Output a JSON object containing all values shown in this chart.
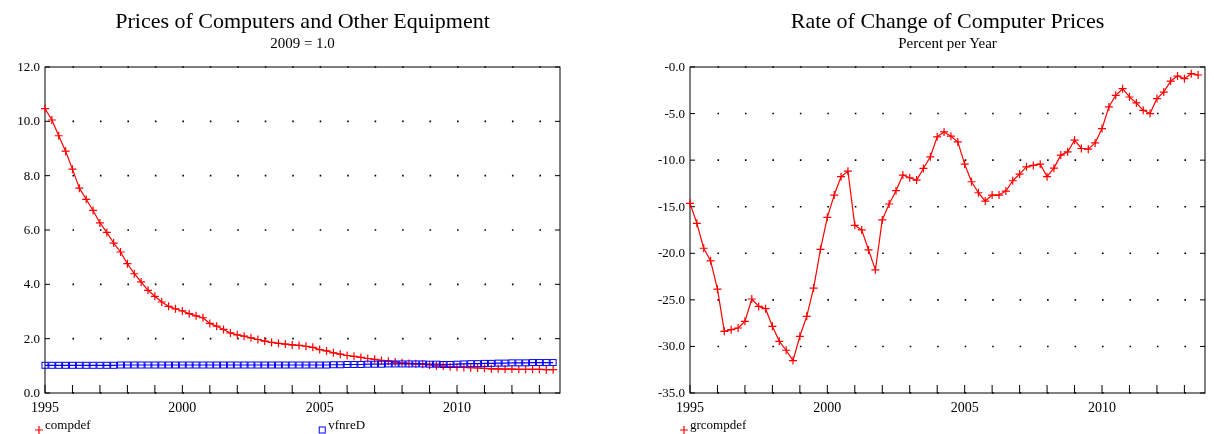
{
  "chart_data": [
    {
      "type": "line",
      "title": "Prices of Computers and Other Equipment",
      "subtitle": "2009 = 1.0",
      "x": [
        1995,
        1995.25,
        1995.5,
        1995.75,
        1996,
        1996.25,
        1996.5,
        1996.75,
        1997,
        1997.25,
        1997.5,
        1997.75,
        1998,
        1998.25,
        1998.5,
        1998.75,
        1999,
        1999.25,
        1999.5,
        1999.75,
        2000,
        2000.25,
        2000.5,
        2000.75,
        2001,
        2001.25,
        2001.5,
        2001.75,
        2002,
        2002.25,
        2002.5,
        2002.75,
        2003,
        2003.25,
        2003.5,
        2003.75,
        2004,
        2004.25,
        2004.5,
        2004.75,
        2005,
        2005.25,
        2005.5,
        2005.75,
        2006,
        2006.25,
        2006.5,
        2006.75,
        2007,
        2007.25,
        2007.5,
        2007.75,
        2008,
        2008.25,
        2008.5,
        2008.75,
        2009,
        2009.25,
        2009.5,
        2009.75,
        2010,
        2010.25,
        2010.5,
        2010.75,
        2011,
        2011.25,
        2011.5,
        2011.75,
        2012,
        2012.25,
        2012.5,
        2012.75,
        2013,
        2013.25,
        2013.5
      ],
      "series": [
        {
          "name": "compdef",
          "color": "#ff0000",
          "marker": "cross",
          "values": [
            10.47,
            10.05,
            9.47,
            8.9,
            8.24,
            7.54,
            7.13,
            6.72,
            6.26,
            5.91,
            5.52,
            5.19,
            4.76,
            4.39,
            4.09,
            3.78,
            3.56,
            3.35,
            3.19,
            3.1,
            3.02,
            2.92,
            2.84,
            2.77,
            2.56,
            2.46,
            2.34,
            2.21,
            2.14,
            2.09,
            2.03,
            1.97,
            1.91,
            1.86,
            1.83,
            1.8,
            1.77,
            1.75,
            1.72,
            1.68,
            1.6,
            1.55,
            1.48,
            1.43,
            1.38,
            1.35,
            1.31,
            1.27,
            1.24,
            1.2,
            1.17,
            1.14,
            1.11,
            1.09,
            1.08,
            1.06,
            1.03,
            1.0,
            0.99,
            0.97,
            0.95,
            0.94,
            0.93,
            0.92,
            0.91,
            0.89,
            0.89,
            0.88,
            0.88,
            0.87,
            0.87,
            0.87,
            0.87,
            0.86,
            0.86
          ]
        },
        {
          "name": "vfnreD",
          "color": "#0000ff",
          "marker": "square",
          "values": [
            1.02,
            1.02,
            1.02,
            1.02,
            1.02,
            1.02,
            1.02,
            1.02,
            1.02,
            1.02,
            1.02,
            1.03,
            1.03,
            1.03,
            1.03,
            1.03,
            1.03,
            1.03,
            1.03,
            1.03,
            1.03,
            1.03,
            1.03,
            1.03,
            1.03,
            1.03,
            1.03,
            1.03,
            1.03,
            1.03,
            1.03,
            1.03,
            1.03,
            1.03,
            1.03,
            1.03,
            1.03,
            1.03,
            1.03,
            1.03,
            1.03,
            1.03,
            1.04,
            1.04,
            1.05,
            1.05,
            1.05,
            1.06,
            1.06,
            1.06,
            1.07,
            1.07,
            1.07,
            1.07,
            1.07,
            1.07,
            1.06,
            1.06,
            1.05,
            1.05,
            1.06,
            1.07,
            1.08,
            1.08,
            1.09,
            1.09,
            1.1,
            1.1,
            1.11,
            1.11,
            1.11,
            1.12,
            1.12,
            1.12,
            1.12
          ]
        }
      ],
      "xlim": [
        1995,
        2013.75
      ],
      "xticks": [
        {
          "value": 1995,
          "label": "1995"
        },
        {
          "value": 1996,
          "label": null
        },
        {
          "value": 1997,
          "label": null
        },
        {
          "value": 1998,
          "label": null
        },
        {
          "value": 1999,
          "label": null
        },
        {
          "value": 2000,
          "label": "2000"
        },
        {
          "value": 2001,
          "label": null
        },
        {
          "value": 2002,
          "label": null
        },
        {
          "value": 2003,
          "label": null
        },
        {
          "value": 2004,
          "label": null
        },
        {
          "value": 2005,
          "label": "2005"
        },
        {
          "value": 2006,
          "label": null
        },
        {
          "value": 2007,
          "label": null
        },
        {
          "value": 2008,
          "label": null
        },
        {
          "value": 2009,
          "label": null
        },
        {
          "value": 2010,
          "label": "2010"
        },
        {
          "value": 2011,
          "label": null
        },
        {
          "value": 2012,
          "label": null
        },
        {
          "value": 2013,
          "label": null
        }
      ],
      "ylim": [
        0,
        12
      ],
      "yticks": [
        {
          "value": 0,
          "label": "0.0"
        },
        {
          "value": 2,
          "label": "2.0"
        },
        {
          "value": 4,
          "label": "4.0"
        },
        {
          "value": 6,
          "label": "6.0"
        },
        {
          "value": 8,
          "label": "8.0"
        },
        {
          "value": 10,
          "label": "10.0"
        },
        {
          "value": 12,
          "label": "12.0"
        }
      ],
      "grid": true,
      "legend": "bottom"
    },
    {
      "type": "line",
      "title": "Rate of Change of Computer Prices",
      "subtitle": "Percent per Year",
      "x": [
        1995,
        1995.25,
        1995.5,
        1995.75,
        1996,
        1996.25,
        1996.5,
        1996.75,
        1997,
        1997.25,
        1997.5,
        1997.75,
        1998,
        1998.25,
        1998.5,
        1998.75,
        1999,
        1999.25,
        1999.5,
        1999.75,
        2000,
        2000.25,
        2000.5,
        2000.75,
        2001,
        2001.25,
        2001.5,
        2001.75,
        2002,
        2002.25,
        2002.5,
        2002.75,
        2003,
        2003.25,
        2003.5,
        2003.75,
        2004,
        2004.25,
        2004.5,
        2004.75,
        2005,
        2005.25,
        2005.5,
        2005.75,
        2006,
        2006.25,
        2006.5,
        2006.75,
        2007,
        2007.25,
        2007.5,
        2007.75,
        2008,
        2008.25,
        2008.5,
        2008.75,
        2009,
        2009.25,
        2009.5,
        2009.75,
        2010,
        2010.25,
        2010.5,
        2010.75,
        2011,
        2011.25,
        2011.5,
        2011.75,
        2012,
        2012.25,
        2012.5,
        2012.75,
        2013,
        2013.25,
        2013.5
      ],
      "series": [
        {
          "name": "grcompdef",
          "color": "#ff0000",
          "marker": "cross",
          "values": [
            -14.64,
            -16.78,
            -19.46,
            -20.81,
            -23.85,
            -28.38,
            -28.2,
            -28.02,
            -27.31,
            -24.91,
            -25.7,
            -25.95,
            -27.84,
            -29.45,
            -30.41,
            -31.52,
            -28.91,
            -26.77,
            -23.74,
            -19.57,
            -16.14,
            -13.75,
            -11.78,
            -11.18,
            -17.0,
            -17.49,
            -19.64,
            -21.78,
            -16.42,
            -14.71,
            -13.28,
            -11.6,
            -11.89,
            -12.14,
            -10.89,
            -9.64,
            -7.5,
            -6.97,
            -7.43,
            -8.04,
            -10.43,
            -12.32,
            -13.5,
            -14.39,
            -13.75,
            -13.75,
            -13.32,
            -12.21,
            -11.5,
            -10.72,
            -10.57,
            -10.43,
            -11.78,
            -10.86,
            -9.46,
            -9.11,
            -7.86,
            -8.75,
            -8.82,
            -8.15,
            -6.61,
            -4.29,
            -3.04,
            -2.33,
            -3.22,
            -3.86,
            -4.65,
            -5.0,
            -3.39,
            -2.69,
            -1.51,
            -0.97,
            -1.25,
            -0.72,
            -0.86
          ]
        }
      ],
      "xlim": [
        1995,
        2013.75
      ],
      "xticks": [
        {
          "value": 1995,
          "label": "1995"
        },
        {
          "value": 1996,
          "label": null
        },
        {
          "value": 1997,
          "label": null
        },
        {
          "value": 1998,
          "label": null
        },
        {
          "value": 1999,
          "label": null
        },
        {
          "value": 2000,
          "label": "2000"
        },
        {
          "value": 2001,
          "label": null
        },
        {
          "value": 2002,
          "label": null
        },
        {
          "value": 2003,
          "label": null
        },
        {
          "value": 2004,
          "label": null
        },
        {
          "value": 2005,
          "label": "2005"
        },
        {
          "value": 2006,
          "label": null
        },
        {
          "value": 2007,
          "label": null
        },
        {
          "value": 2008,
          "label": null
        },
        {
          "value": 2009,
          "label": null
        },
        {
          "value": 2010,
          "label": "2010"
        },
        {
          "value": 2011,
          "label": null
        },
        {
          "value": 2012,
          "label": null
        },
        {
          "value": 2013,
          "label": null
        }
      ],
      "ylim": [
        -35,
        0
      ],
      "yticks": [
        {
          "value": -35,
          "label": "-35.0"
        },
        {
          "value": -30,
          "label": "-30.0"
        },
        {
          "value": -25,
          "label": "-25.0"
        },
        {
          "value": -20,
          "label": "-20.0"
        },
        {
          "value": -15,
          "label": "-15.0"
        },
        {
          "value": -10,
          "label": "-10.0"
        },
        {
          "value": -5,
          "label": "-5.0"
        },
        {
          "value": 0,
          "label": "-0.0"
        }
      ],
      "grid": true,
      "legend": "bottom"
    }
  ]
}
